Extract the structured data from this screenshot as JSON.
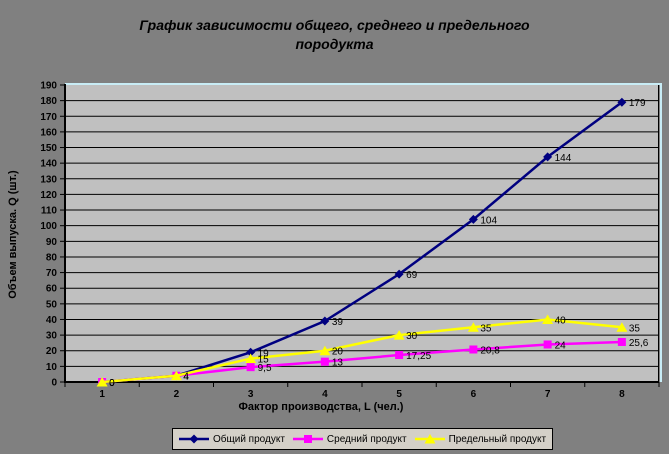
{
  "window": {
    "background": "#808080"
  },
  "title": {
    "lines": [
      "График зависимости общего, среднего и предельного",
      "породукта"
    ]
  },
  "colors": {
    "background": "#808080",
    "plot_bg": "#c0c0c0",
    "grid": "#000000",
    "axis": "#000000",
    "plot_border_highlight": "#c8ecf5",
    "legend_bg": "#d4d0c8",
    "text": "#000000"
  },
  "chart_data": {
    "type": "line",
    "title": "График зависимости общего, среднего и предельного породукта",
    "xlabel": "Фактор производства, L (чел.)",
    "ylabel": "Объем выпуска. Q (шт.)",
    "x": [
      1,
      2,
      3,
      4,
      5,
      6,
      7,
      8
    ],
    "xticks": [
      1,
      2,
      3,
      4,
      5,
      6,
      7,
      8
    ],
    "ylim": [
      0,
      190
    ],
    "ytick_step": 10,
    "yticks": [
      0,
      10,
      20,
      30,
      40,
      50,
      60,
      70,
      80,
      90,
      100,
      110,
      120,
      130,
      140,
      150,
      160,
      170,
      180,
      190
    ],
    "grid": true,
    "legend_position": "bottom",
    "series": [
      {
        "name": "Общий продукт",
        "color": "#000080",
        "marker": "diamond",
        "values": [
          0,
          4,
          19,
          39,
          69,
          104,
          144,
          179
        ],
        "labels": [
          "0",
          "4",
          "19",
          "39",
          "69",
          "104",
          "144",
          "179"
        ]
      },
      {
        "name": "Средний продукт",
        "color": "#ff00ff",
        "marker": "square",
        "values": [
          0,
          4,
          9.5,
          13,
          17.25,
          20.8,
          24,
          25.6
        ],
        "labels": [
          "0",
          "4",
          "9,5",
          "13",
          "17,25",
          "20,8",
          "24",
          "25,6"
        ]
      },
      {
        "name": "Предельный продукт",
        "color": "#ffff00",
        "marker": "triangle",
        "values": [
          0,
          4,
          15,
          20,
          30,
          35,
          40,
          35
        ],
        "labels": [
          "0",
          "4",
          "15",
          "20",
          "30",
          "35",
          "40",
          "35"
        ]
      }
    ]
  }
}
